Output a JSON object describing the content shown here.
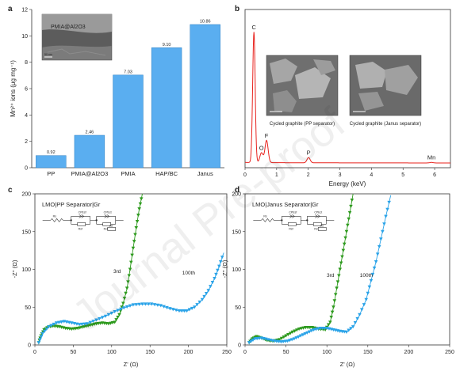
{
  "panels": [
    "a",
    "b",
    "c",
    "d"
  ],
  "watermark": "Journal Pre-proof",
  "chart_data": [
    {
      "id": "a",
      "type": "bar",
      "categories": [
        "PP",
        "PMIA@Al2O3",
        "PMIA",
        "HAP/BC",
        "Janus"
      ],
      "values": [
        0.92,
        2.46,
        7.03,
        9.1,
        10.86
      ],
      "value_labels": [
        "0.92",
        "2.46",
        "7.03",
        "9.10",
        "10.86"
      ],
      "ylabel": "Mn²⁺ ions (μg mg⁻¹)",
      "ylim": [
        0,
        12
      ],
      "yticks": [
        "0",
        "2",
        "4",
        "6",
        "8",
        "10",
        "12"
      ],
      "bar_color": "#5aaef0",
      "inset_label": "PMIA@Al2O3",
      "inset_scale": "50 nm"
    },
    {
      "id": "b",
      "type": "line",
      "xlabel": "Energy (keV)",
      "xlim": [
        0,
        6.5
      ],
      "xticks": [
        "0",
        "1",
        "2",
        "3",
        "4",
        "5",
        "6"
      ],
      "peaks": [
        {
          "label": "C",
          "x": 0.28,
          "y": 1.0
        },
        {
          "label": "O",
          "x": 0.52,
          "y": 0.075
        },
        {
          "label": "F",
          "x": 0.68,
          "y": 0.17
        },
        {
          "label": "P",
          "x": 2.01,
          "y": 0.04
        },
        {
          "label": "Mn",
          "x": 5.9,
          "y": 0.004
        }
      ],
      "line_color": "#e8231e",
      "image_captions": [
        "Cycled graphite (PP separator)",
        "Cycled graphite (Janus separator)"
      ]
    },
    {
      "id": "c",
      "type": "scatter",
      "title": "LMO|PP Separator|Gr",
      "xlabel": "Z' (Ω)",
      "ylabel": "-Z'' (Ω)",
      "xlim": [
        0,
        250
      ],
      "ylim": [
        0,
        200
      ],
      "xticks": [
        "0",
        "50",
        "100",
        "150",
        "200",
        "250"
      ],
      "yticks": [
        "0",
        "50",
        "100",
        "150",
        "200"
      ],
      "circuit_labels": [
        "Rs",
        "CPEsf",
        "Rsf",
        "CPEct",
        "Rct",
        "Zw"
      ],
      "series": [
        {
          "name": "3rd",
          "color": "#2e9a1e",
          "x": [
            5,
            8,
            12,
            18,
            25,
            32,
            40,
            48,
            56,
            64,
            72,
            80,
            88,
            96,
            104,
            110,
            115,
            120,
            124,
            128,
            132,
            136,
            140
          ],
          "y": [
            3,
            12,
            20,
            24,
            25,
            24,
            22,
            21,
            22,
            24,
            26,
            28,
            29,
            28,
            30,
            40,
            55,
            75,
            100,
            128,
            155,
            180,
            200
          ]
        },
        {
          "name": "100th",
          "color": "#2aa3e8",
          "x": [
            5,
            10,
            18,
            28,
            38,
            48,
            58,
            68,
            80,
            92,
            104,
            116,
            128,
            140,
            152,
            164,
            176,
            188,
            198,
            208,
            218,
            226,
            234,
            240,
            246
          ],
          "y": [
            3,
            15,
            24,
            29,
            31,
            29,
            27,
            28,
            33,
            38,
            44,
            49,
            53,
            54,
            54,
            52,
            48,
            45,
            45,
            50,
            60,
            72,
            88,
            104,
            122
          ]
        }
      ]
    },
    {
      "id": "d",
      "type": "scatter",
      "title": "LMO|Janus Separator|Gr",
      "xlabel": "Z' (Ω)",
      "ylabel": "-Z'' (Ω)",
      "xlim": [
        0,
        250
      ],
      "ylim": [
        0,
        200
      ],
      "xticks": [
        "0",
        "50",
        "100",
        "150",
        "200",
        "250"
      ],
      "yticks": [
        "0",
        "50",
        "100",
        "150",
        "200"
      ],
      "circuit_labels": [
        "Rs",
        "CPEsf",
        "Rsf",
        "CPEct",
        "Rct",
        "Zw"
      ],
      "series": [
        {
          "name": "3rd",
          "color": "#2e9a1e",
          "x": [
            5,
            9,
            14,
            20,
            27,
            34,
            42,
            50,
            58,
            66,
            74,
            82,
            90,
            98,
            104,
            108,
            112,
            116,
            120,
            124,
            128,
            132
          ],
          "y": [
            3,
            8,
            11,
            9,
            6,
            5,
            7,
            12,
            17,
            21,
            23,
            23,
            21,
            20,
            30,
            50,
            75,
            100,
            125,
            150,
            175,
            200
          ]
        },
        {
          "name": "100th",
          "color": "#2aa3e8",
          "x": [
            5,
            12,
            20,
            28,
            36,
            44,
            52,
            60,
            68,
            76,
            84,
            92,
            100,
            108,
            116,
            124,
            132,
            140,
            148,
            154,
            160,
            166,
            172,
            178
          ],
          "y": [
            3,
            8,
            9,
            7,
            5,
            4,
            5,
            8,
            12,
            16,
            20,
            22,
            22,
            20,
            18,
            17,
            24,
            40,
            60,
            85,
            110,
            140,
            170,
            198
          ]
        }
      ]
    }
  ]
}
